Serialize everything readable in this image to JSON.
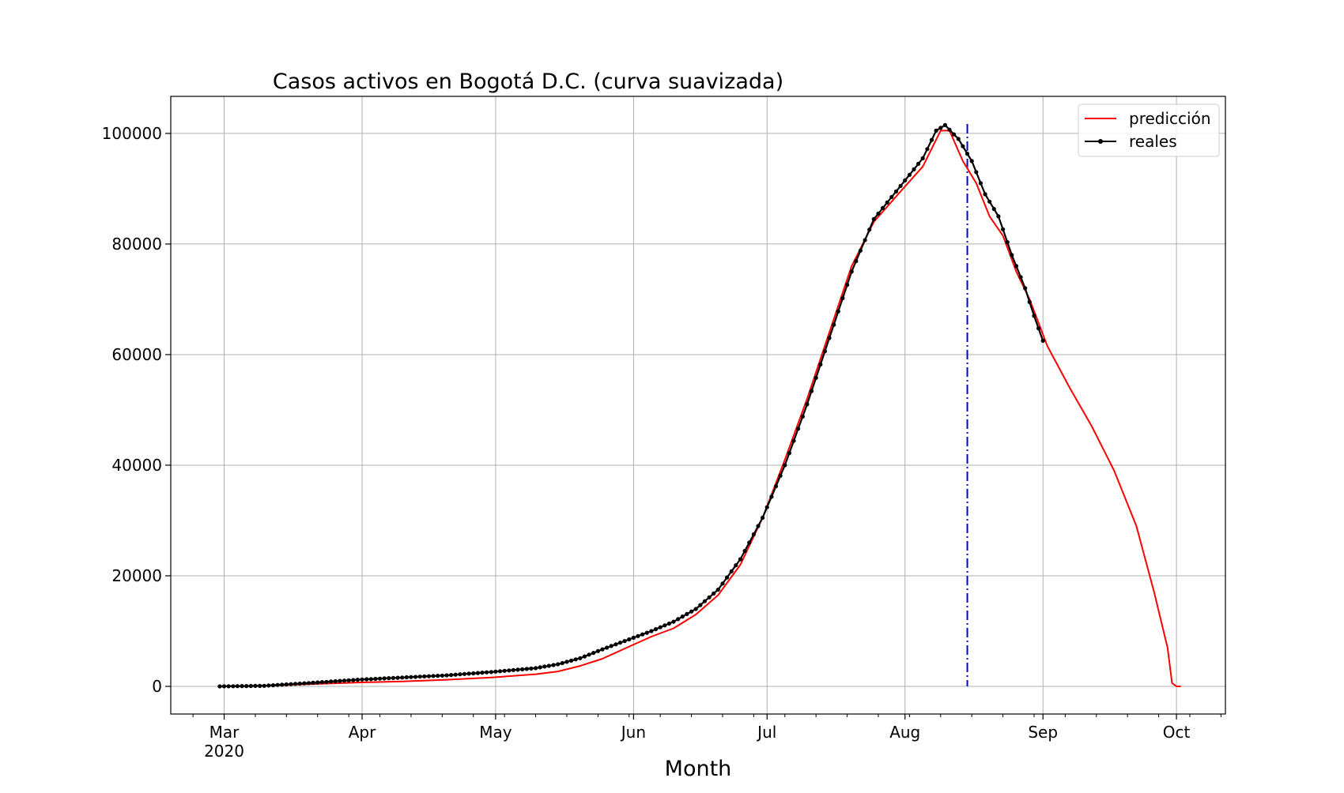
{
  "chart_data": {
    "type": "line",
    "title": "Casos activos en Bogotá D.C. (curva suavizada)",
    "xlabel": "Month",
    "ylabel": "",
    "x_ticks": [
      {
        "date": "2020-03-01",
        "label": "Mar",
        "sublabel": "2020"
      },
      {
        "date": "2020-04-01",
        "label": "Apr",
        "sublabel": ""
      },
      {
        "date": "2020-05-01",
        "label": "May",
        "sublabel": ""
      },
      {
        "date": "2020-06-01",
        "label": "Jun",
        "sublabel": ""
      },
      {
        "date": "2020-07-01",
        "label": "Jul",
        "sublabel": ""
      },
      {
        "date": "2020-08-01",
        "label": "Aug",
        "sublabel": ""
      },
      {
        "date": "2020-09-01",
        "label": "Sep",
        "sublabel": ""
      },
      {
        "date": "2020-10-01",
        "label": "Oct",
        "sublabel": ""
      }
    ],
    "xlim": [
      "2020-02-18",
      "2020-10-12"
    ],
    "y_ticks": [
      0,
      20000,
      40000,
      60000,
      80000,
      100000
    ],
    "y_tick_labels": [
      "0",
      "20000",
      "40000",
      "60000",
      "80000",
      "100000"
    ],
    "ylim": [
      -5000,
      106700
    ],
    "grid": true,
    "legend_position": "top-right",
    "series": [
      {
        "name": "predicción",
        "color": "#ff0000",
        "marker": false,
        "points": [
          [
            "2020-02-29",
            0
          ],
          [
            "2020-03-10",
            100
          ],
          [
            "2020-03-20",
            400
          ],
          [
            "2020-03-31",
            700
          ],
          [
            "2020-04-10",
            900
          ],
          [
            "2020-04-20",
            1200
          ],
          [
            "2020-04-30",
            1600
          ],
          [
            "2020-05-10",
            2200
          ],
          [
            "2020-05-15",
            2700
          ],
          [
            "2020-05-20",
            3700
          ],
          [
            "2020-05-25",
            5000
          ],
          [
            "2020-05-31",
            7200
          ],
          [
            "2020-06-05",
            9000
          ],
          [
            "2020-06-10",
            10500
          ],
          [
            "2020-06-15",
            13000
          ],
          [
            "2020-06-20",
            16500
          ],
          [
            "2020-06-25",
            22000
          ],
          [
            "2020-06-30",
            30500
          ],
          [
            "2020-07-05",
            41000
          ],
          [
            "2020-07-10",
            52000
          ],
          [
            "2020-07-15",
            64000
          ],
          [
            "2020-07-20",
            76000
          ],
          [
            "2020-07-25",
            84000
          ],
          [
            "2020-07-31",
            89500
          ],
          [
            "2020-08-05",
            94000
          ],
          [
            "2020-08-09",
            100500
          ],
          [
            "2020-08-11",
            100500
          ],
          [
            "2020-08-14",
            95000
          ],
          [
            "2020-08-17",
            91000
          ],
          [
            "2020-08-20",
            85000
          ],
          [
            "2020-08-23",
            81500
          ],
          [
            "2020-08-26",
            75000
          ],
          [
            "2020-08-29",
            70000
          ],
          [
            "2020-09-02",
            61500
          ],
          [
            "2020-09-07",
            54000
          ],
          [
            "2020-09-12",
            47000
          ],
          [
            "2020-09-17",
            39000
          ],
          [
            "2020-09-22",
            29000
          ],
          [
            "2020-09-26",
            17000
          ],
          [
            "2020-09-29",
            7000
          ],
          [
            "2020-09-30",
            600
          ],
          [
            "2020-10-01",
            0
          ],
          [
            "2020-10-02",
            0
          ]
        ]
      },
      {
        "name": "reales",
        "color": "#000000",
        "marker": true,
        "points": [
          [
            "2020-02-29",
            0
          ],
          [
            "2020-03-10",
            100
          ],
          [
            "2020-03-20",
            600
          ],
          [
            "2020-03-31",
            1200
          ],
          [
            "2020-04-10",
            1600
          ],
          [
            "2020-04-20",
            2000
          ],
          [
            "2020-04-30",
            2600
          ],
          [
            "2020-05-10",
            3300
          ],
          [
            "2020-05-15",
            4000
          ],
          [
            "2020-05-20",
            5100
          ],
          [
            "2020-05-25",
            6700
          ],
          [
            "2020-05-31",
            8500
          ],
          [
            "2020-06-05",
            10000
          ],
          [
            "2020-06-10",
            11700
          ],
          [
            "2020-06-15",
            14000
          ],
          [
            "2020-06-20",
            17500
          ],
          [
            "2020-06-25",
            23000
          ],
          [
            "2020-06-30",
            30500
          ],
          [
            "2020-07-05",
            40000
          ],
          [
            "2020-07-10",
            51000
          ],
          [
            "2020-07-15",
            63000
          ],
          [
            "2020-07-20",
            75000
          ],
          [
            "2020-07-25",
            84500
          ],
          [
            "2020-07-31",
            90500
          ],
          [
            "2020-08-05",
            95500
          ],
          [
            "2020-08-08",
            100500
          ],
          [
            "2020-08-10",
            101500
          ],
          [
            "2020-08-13",
            99000
          ],
          [
            "2020-08-16",
            95000
          ],
          [
            "2020-08-19",
            89000
          ],
          [
            "2020-08-22",
            85000
          ],
          [
            "2020-08-25",
            78000
          ],
          [
            "2020-08-28",
            72000
          ],
          [
            "2020-08-30",
            67000
          ],
          [
            "2020-09-01",
            62500
          ]
        ]
      }
    ],
    "vertical_line": {
      "date": "2020-08-15",
      "color": "#0000cc",
      "style": "dashdot"
    }
  }
}
